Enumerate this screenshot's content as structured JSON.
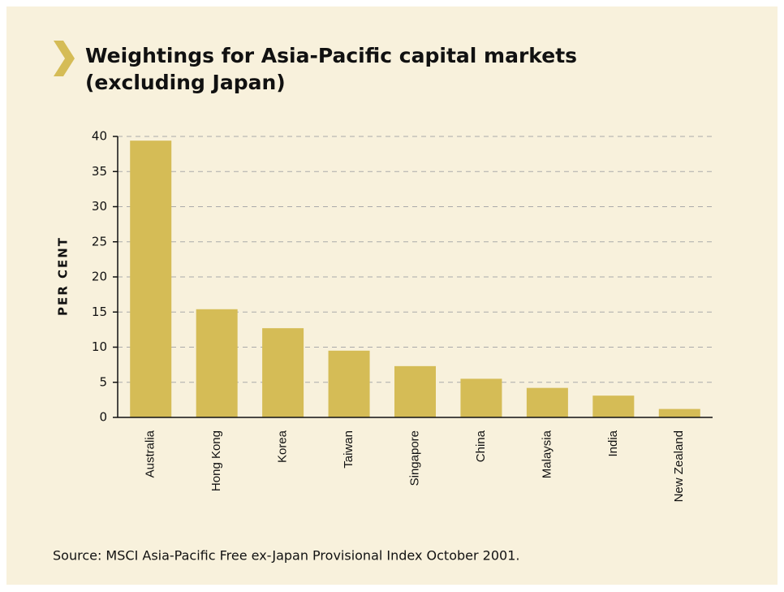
{
  "chart_data": {
    "type": "bar",
    "title": [
      "Weightings for Asia-Pacific capital markets",
      "(excluding Japan)"
    ],
    "ylabel": "PER CENT",
    "categories": [
      "Australia",
      "Hong Kong",
      "Korea",
      "Taiwan",
      "Singapore",
      "China",
      "Malaysia",
      "India",
      "New Zealand"
    ],
    "values": [
      39.4,
      15.4,
      12.7,
      9.5,
      7.3,
      5.5,
      4.2,
      3.1,
      1.2
    ],
    "color": "#d5bc56",
    "ylim": [
      0,
      40
    ],
    "yticks": [
      0,
      5,
      10,
      15,
      20,
      25,
      30,
      35,
      40
    ],
    "grid": true,
    "source": "Source: MSCI Asia-Pacific Free ex-Japan Provisional Index October 2001."
  }
}
